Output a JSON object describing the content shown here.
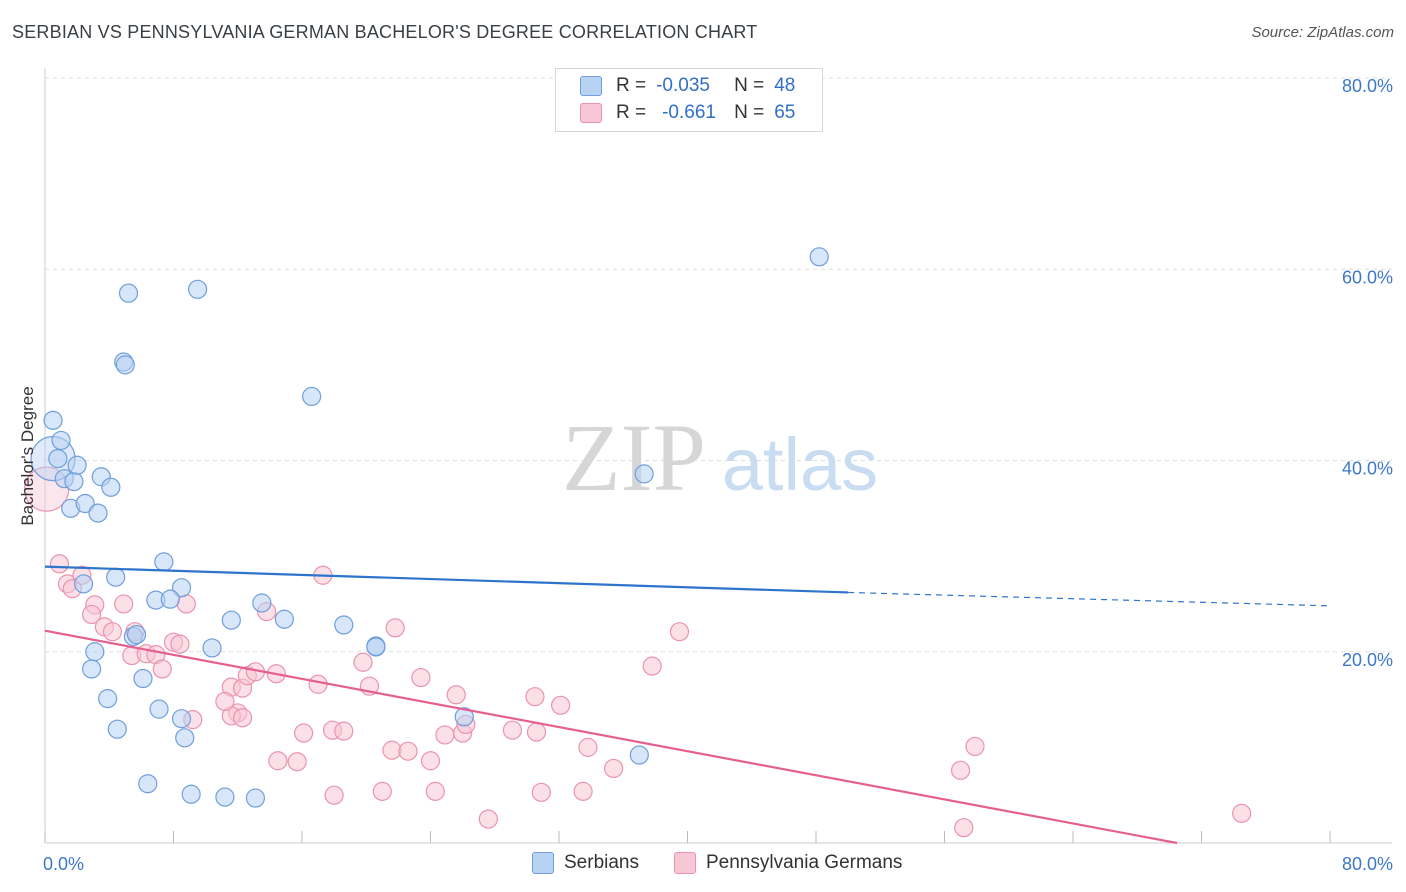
{
  "title": "SERBIAN VS PENNSYLVANIA GERMAN BACHELOR'S DEGREE CORRELATION CHART",
  "source": "Source: ZipAtlas.com",
  "watermark": {
    "zip": "ZIP",
    "atlas": "atlas"
  },
  "legend": {
    "r_label": "R =",
    "n_label": "N =",
    "serbian": {
      "r": "-0.035",
      "n": "48"
    },
    "pa_german": {
      "r": "-0.661",
      "n": "65"
    }
  },
  "colors": {
    "serbian_fill": "#b7d2f3",
    "serbian_stroke": "#6f9fdc",
    "serbian_line": "#2d74cc",
    "pa_fill": "#f8c7d6",
    "pa_stroke": "#eb93ae",
    "pa_line": "#e4608e",
    "tick_label": "#3d78c8",
    "grid": "#dddddd"
  },
  "chart_data": {
    "type": "scatter",
    "title": "SERBIAN VS PENNSYLVANIA GERMAN BACHELOR'S DEGREE CORRELATION CHART",
    "xlabel": "",
    "ylabel": "Bachelor's Degree",
    "xlim": [
      0,
      80
    ],
    "ylim": [
      0,
      80
    ],
    "x_tick_labels": [
      "0.0%",
      "80.0%"
    ],
    "y_ticks": [
      20,
      40,
      60,
      80
    ],
    "y_tick_labels": [
      "20.0%",
      "40.0%",
      "60.0%",
      "80.0%"
    ],
    "grid": true,
    "series": [
      {
        "name": "Serbians",
        "r": -0.035,
        "n": 48,
        "trend": {
          "x0": 0,
          "y0": 28.9,
          "x1": 50,
          "y1": 26.2,
          "dashed_to_x": 80,
          "dashed_to_y": 24.8
        },
        "points": [
          [
            0.5,
            40.2,
            "L"
          ],
          [
            0.5,
            44.2
          ],
          [
            1.0,
            42.1
          ],
          [
            0.8,
            40.2
          ],
          [
            1.2,
            38.1
          ],
          [
            1.8,
            37.8
          ],
          [
            1.6,
            35.0
          ],
          [
            2.5,
            35.5
          ],
          [
            3.3,
            34.5
          ],
          [
            2.0,
            39.5
          ],
          [
            3.5,
            38.3
          ],
          [
            4.1,
            37.2
          ],
          [
            2.4,
            27.1
          ],
          [
            4.4,
            27.8
          ],
          [
            7.4,
            29.4
          ],
          [
            8.5,
            26.7
          ],
          [
            6.9,
            25.4
          ],
          [
            7.8,
            25.5
          ],
          [
            5.5,
            21.6
          ],
          [
            5.7,
            21.8
          ],
          [
            11.6,
            23.3
          ],
          [
            13.5,
            25.1
          ],
          [
            14.9,
            23.4
          ],
          [
            18.6,
            22.8
          ],
          [
            20.6,
            20.6
          ],
          [
            10.4,
            20.4
          ],
          [
            3.1,
            20.0
          ],
          [
            2.9,
            18.2
          ],
          [
            6.1,
            17.2
          ],
          [
            3.9,
            15.1
          ],
          [
            7.1,
            14.0
          ],
          [
            8.5,
            13.0
          ],
          [
            4.5,
            11.9
          ],
          [
            8.7,
            11.0
          ],
          [
            6.4,
            6.2
          ],
          [
            9.1,
            5.1
          ],
          [
            11.2,
            4.8
          ],
          [
            13.1,
            4.7
          ],
          [
            5.2,
            57.5
          ],
          [
            9.5,
            57.9
          ],
          [
            4.9,
            50.3
          ],
          [
            5.0,
            50.0
          ],
          [
            16.6,
            46.7
          ],
          [
            37.3,
            38.6
          ],
          [
            37.0,
            9.2
          ],
          [
            26.1,
            13.2
          ],
          [
            48.2,
            61.3
          ],
          [
            20.6,
            20.5
          ]
        ]
      },
      {
        "name": "Pennsylvania Germans",
        "r": -0.661,
        "n": 65,
        "trend": {
          "x0": 0,
          "y0": 22.2,
          "x1": 80,
          "y1": -3.0
        },
        "points": [
          [
            0.1,
            37.0,
            "L"
          ],
          [
            0.9,
            29.2
          ],
          [
            1.4,
            27.1
          ],
          [
            1.7,
            26.6
          ],
          [
            2.3,
            28.0
          ],
          [
            3.1,
            24.9
          ],
          [
            2.9,
            23.9
          ],
          [
            4.9,
            25.0
          ],
          [
            3.7,
            22.6
          ],
          [
            4.2,
            22.1
          ],
          [
            5.6,
            22.1
          ],
          [
            8.8,
            25.0
          ],
          [
            8.0,
            21.0
          ],
          [
            8.4,
            20.8
          ],
          [
            5.4,
            19.6
          ],
          [
            6.3,
            19.8
          ],
          [
            6.9,
            19.7
          ],
          [
            7.3,
            18.2
          ],
          [
            11.6,
            16.3
          ],
          [
            12.3,
            16.2
          ],
          [
            12.0,
            13.6
          ],
          [
            11.6,
            13.3
          ],
          [
            11.2,
            14.8
          ],
          [
            9.2,
            12.9
          ],
          [
            12.3,
            13.1
          ],
          [
            12.6,
            17.5
          ],
          [
            13.1,
            17.9
          ],
          [
            14.4,
            17.7
          ],
          [
            17.3,
            28.0
          ],
          [
            13.8,
            24.2
          ],
          [
            17.0,
            16.6
          ],
          [
            19.8,
            18.9
          ],
          [
            20.2,
            16.4
          ],
          [
            23.4,
            17.3
          ],
          [
            21.8,
            22.5
          ],
          [
            16.1,
            11.5
          ],
          [
            17.9,
            11.8
          ],
          [
            18.6,
            11.7
          ],
          [
            14.5,
            8.6
          ],
          [
            15.7,
            8.5
          ],
          [
            18.0,
            5.0
          ],
          [
            21.0,
            5.4
          ],
          [
            21.6,
            9.7
          ],
          [
            22.6,
            9.6
          ],
          [
            24.3,
            5.4
          ],
          [
            24.0,
            8.6
          ],
          [
            24.9,
            11.3
          ],
          [
            25.6,
            15.5
          ],
          [
            26.0,
            11.5
          ],
          [
            26.2,
            12.4
          ],
          [
            29.1,
            11.8
          ],
          [
            30.5,
            15.3
          ],
          [
            30.6,
            11.6
          ],
          [
            30.9,
            5.3
          ],
          [
            32.1,
            14.4
          ],
          [
            33.5,
            5.4
          ],
          [
            33.8,
            10.0
          ],
          [
            35.4,
            7.8
          ],
          [
            37.8,
            18.5
          ],
          [
            39.5,
            22.1
          ],
          [
            57.2,
            1.6
          ],
          [
            57.9,
            10.1
          ],
          [
            57.0,
            7.6
          ],
          [
            74.5,
            3.1
          ],
          [
            27.6,
            2.5
          ]
        ]
      }
    ]
  },
  "bottom_legend": {
    "serbians": "Serbians",
    "pa_germans": "Pennsylvania Germans"
  }
}
